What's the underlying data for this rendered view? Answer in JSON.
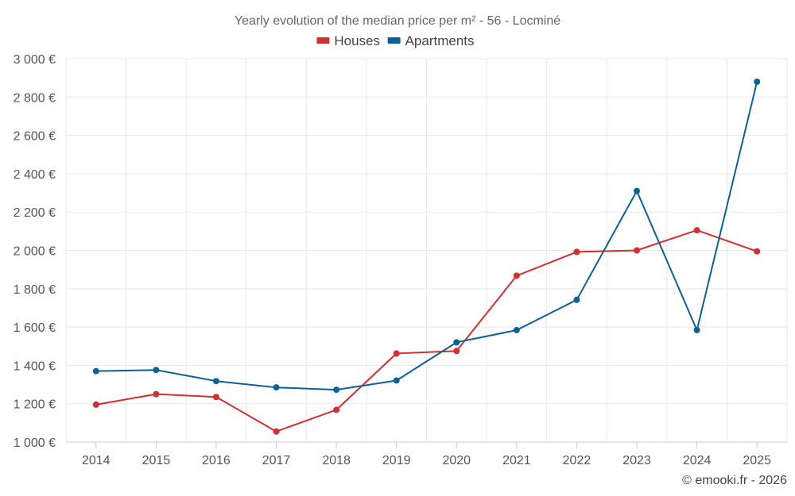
{
  "chart_data": {
    "type": "line",
    "title": "Yearly evolution of the median price per m² - 56 - Locminé",
    "categories": [
      "2014",
      "2015",
      "2016",
      "2017",
      "2018",
      "2019",
      "2020",
      "2021",
      "2022",
      "2023",
      "2024",
      "2025"
    ],
    "series": [
      {
        "name": "Houses",
        "color": "#d32f2f",
        "values": [
          1195,
          1250,
          1235,
          1055,
          1168,
          1462,
          1475,
          1868,
          1992,
          2000,
          2105,
          1995
        ]
      },
      {
        "name": "Apartments",
        "color": "#0a6394",
        "values": [
          1370,
          1376,
          1318,
          1285,
          1273,
          1321,
          1520,
          1584,
          1742,
          2310,
          1584,
          2880
        ]
      }
    ],
    "ylim": [
      1000,
      3000
    ],
    "yticks": [
      1000,
      1200,
      1400,
      1600,
      1800,
      2000,
      2200,
      2400,
      2600,
      2800,
      3000
    ],
    "ytick_labels": [
      "1 000 €",
      "1 200 €",
      "1 400 €",
      "1 600 €",
      "1 800 €",
      "2 000 €",
      "2 200 €",
      "2 400 €",
      "2 600 €",
      "2 800 €",
      "3 000 €"
    ],
    "xlabel": "",
    "ylabel": "",
    "grid": true,
    "legend_position": "top-center"
  },
  "credit": "© emooki.fr - 2026"
}
